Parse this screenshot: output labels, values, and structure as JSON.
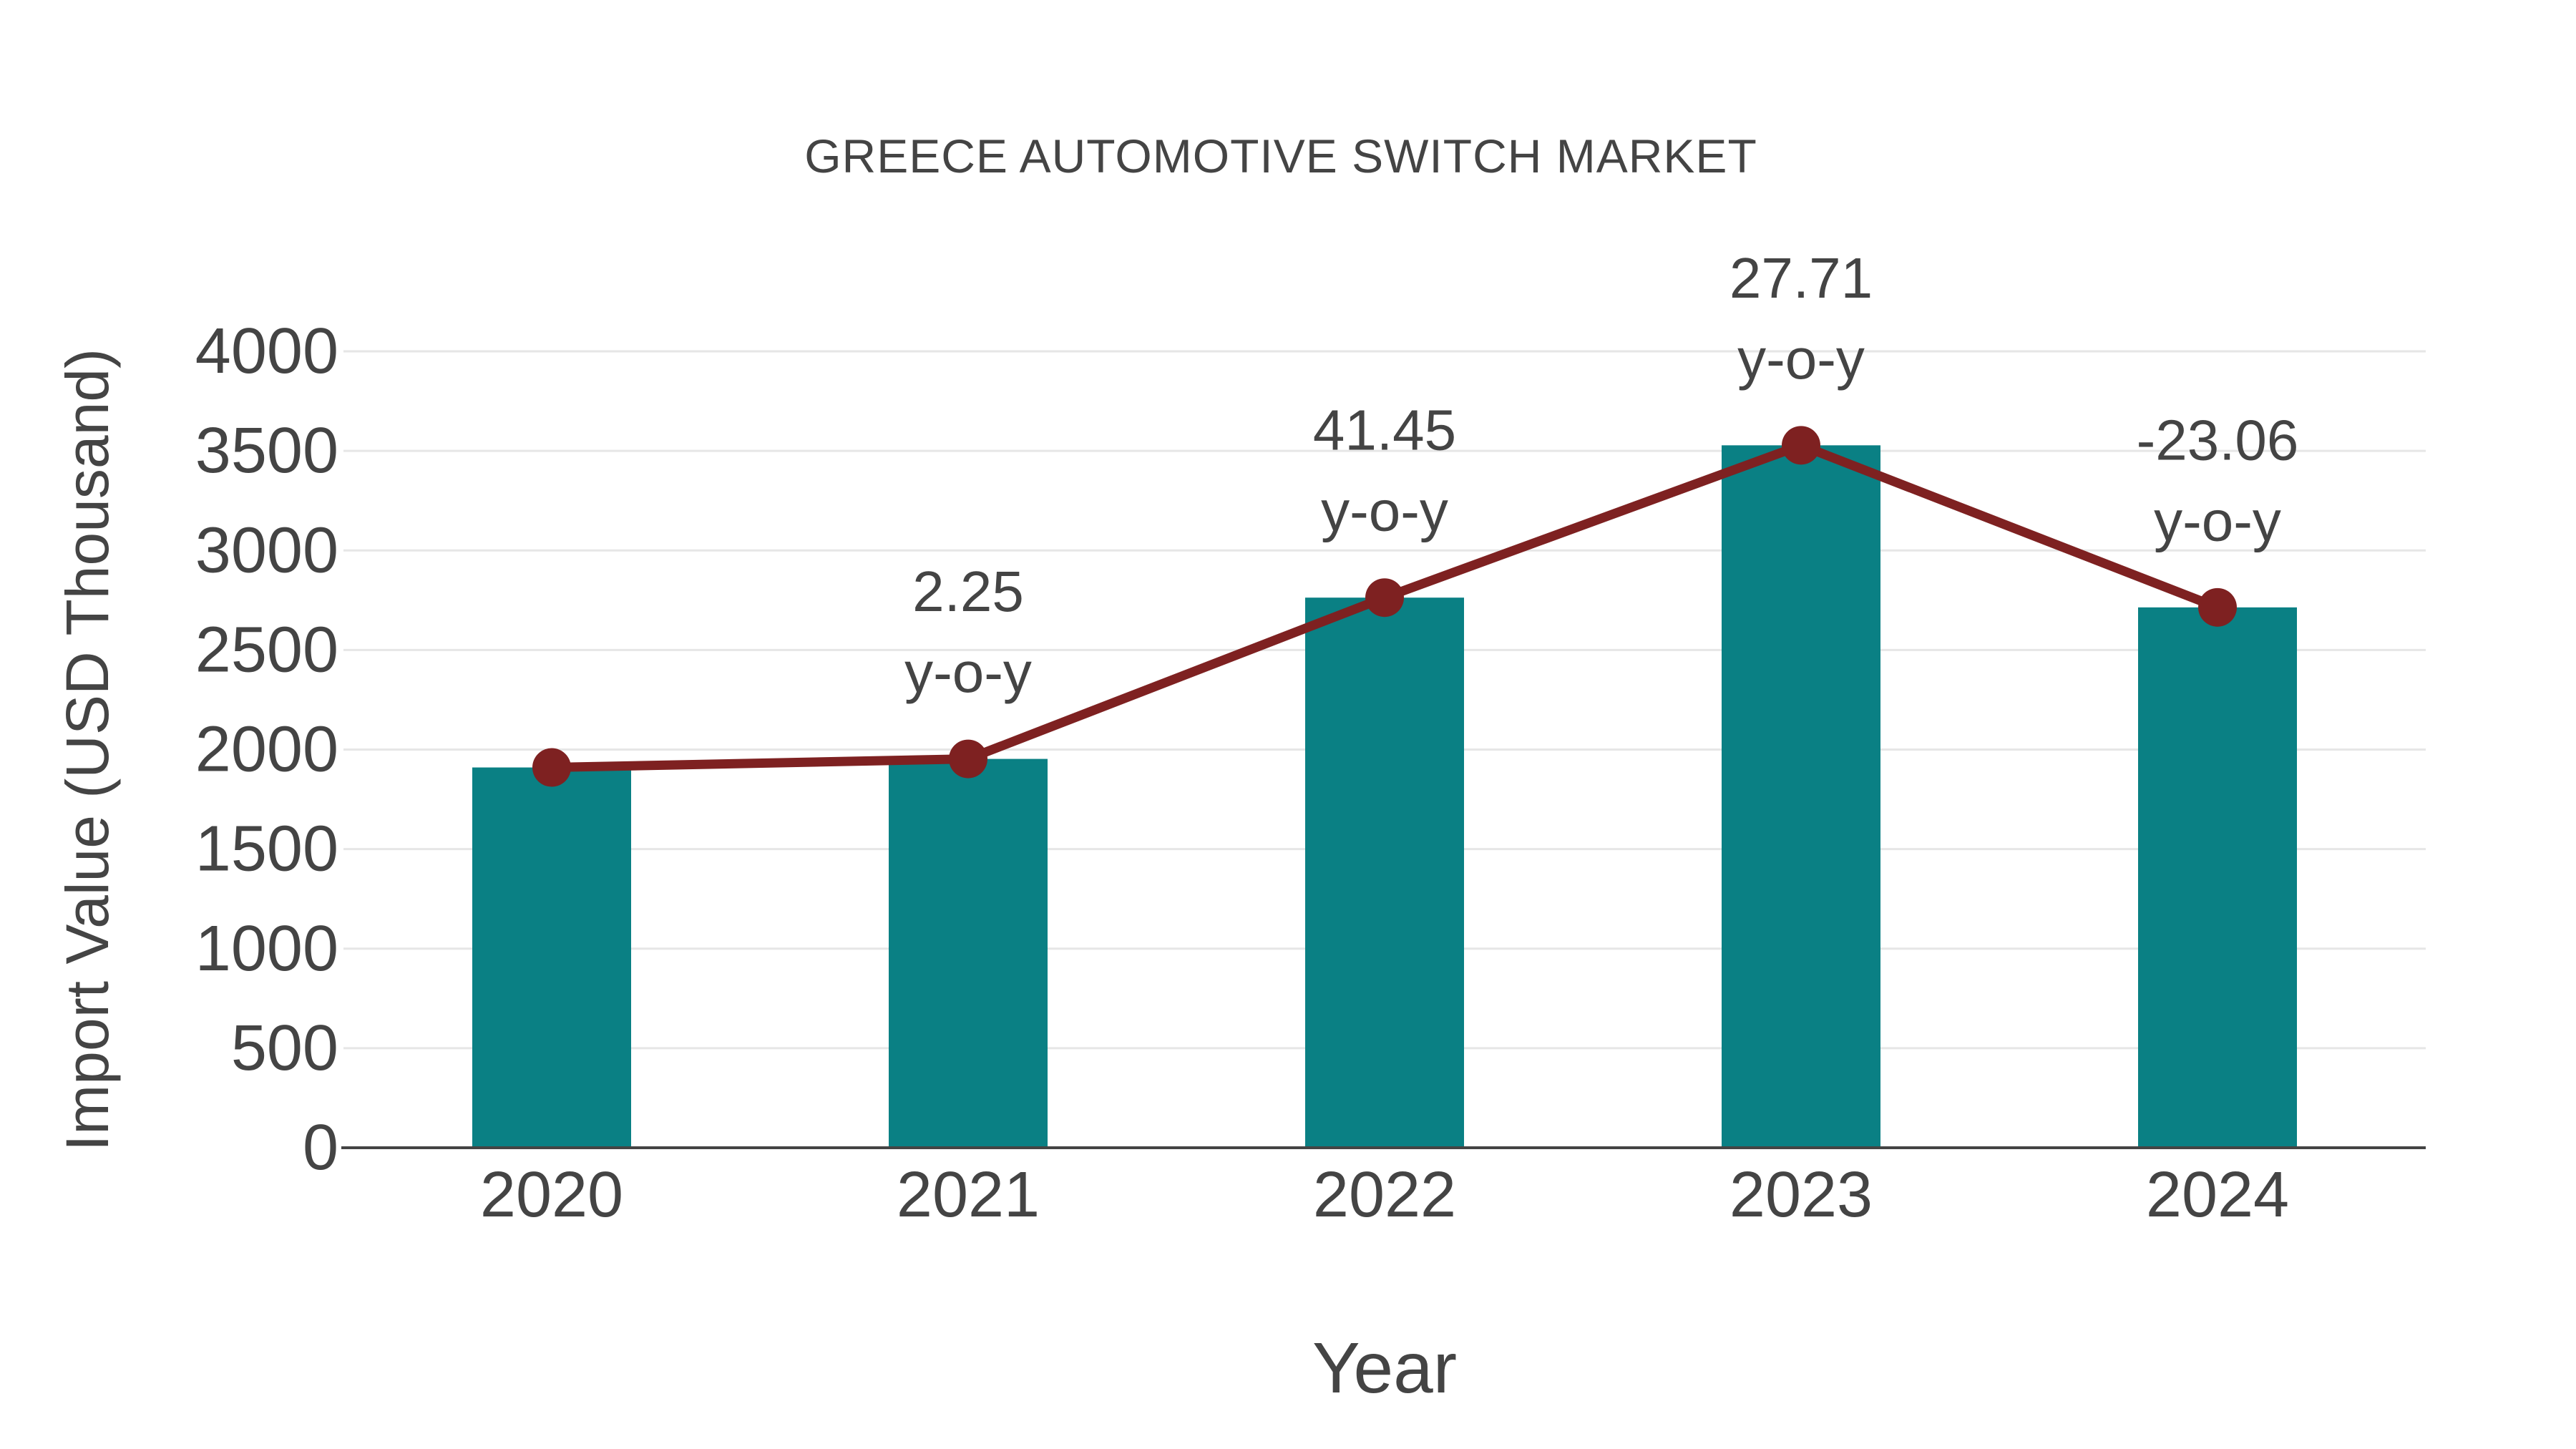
{
  "chart_data": {
    "type": "bar",
    "title": "GREECE AUTOMOTIVE SWITCH MARKET",
    "xlabel": "Year",
    "ylabel": "Import Value (USD Thousand)",
    "categories": [
      "2020",
      "2021",
      "2022",
      "2023",
      "2024"
    ],
    "series": [
      {
        "name": "Import Value (bars)",
        "type": "bar",
        "values": [
          1910,
          1953,
          2763,
          3528,
          2714
        ]
      },
      {
        "name": "Import Value (line with markers)",
        "type": "line",
        "values": [
          1910,
          1953,
          2763,
          3528,
          2714
        ]
      }
    ],
    "annotations": [
      {
        "category": "2021",
        "value_text": "2.25",
        "sub_text": "y-o-y"
      },
      {
        "category": "2022",
        "value_text": "41.45",
        "sub_text": "y-o-y"
      },
      {
        "category": "2023",
        "value_text": "27.71",
        "sub_text": "y-o-y"
      },
      {
        "category": "2024",
        "value_text": "-23.06",
        "sub_text": "y-o-y"
      }
    ],
    "yticks": [
      0,
      500,
      1000,
      1500,
      2000,
      2500,
      3000,
      3500,
      4000
    ],
    "ylim": [
      0,
      4000
    ],
    "grid": "horizontal",
    "legend": "none",
    "colors": {
      "bar": "#0a8084",
      "line": "#7e2121",
      "marker": "#7e2121",
      "text": "#444444",
      "grid": "#e6e6e6",
      "axis": "#444444",
      "background": "#ffffff"
    }
  }
}
